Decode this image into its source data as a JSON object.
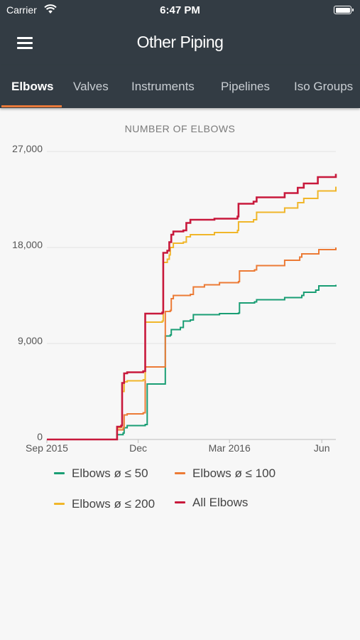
{
  "status_bar": {
    "carrier": "Carrier",
    "time": "6:47 PM",
    "battery_level": 1.0
  },
  "app_bar": {
    "title": "Other Piping",
    "menu_icon": "hamburger-menu-icon"
  },
  "tabs": [
    {
      "label": "Elbows",
      "active": true
    },
    {
      "label": "Valves",
      "active": false
    },
    {
      "label": "Instruments",
      "active": false
    },
    {
      "label": "Pipelines",
      "active": false
    },
    {
      "label": "Iso Groups",
      "active": false
    }
  ],
  "chart_title": "NUMBER OF ELBOWS",
  "chart_data": {
    "type": "line",
    "step": true,
    "title": "NUMBER OF ELBOWS",
    "xlabel": "",
    "ylabel": "",
    "x_range": [
      "2015-09-01",
      "2016-06-15"
    ],
    "ylim": [
      0,
      27000
    ],
    "x_ticks": [
      {
        "date": "2015-09-01",
        "label": "Sep 2015"
      },
      {
        "date": "2015-12-01",
        "label": "Dec"
      },
      {
        "date": "2016-03-01",
        "label": "Mar 2016"
      },
      {
        "date": "2016-06-01",
        "label": "Jun"
      }
    ],
    "y_ticks": [
      {
        "value": 0,
        "label": "0"
      },
      {
        "value": 9000,
        "label": "9,000"
      },
      {
        "value": 18000,
        "label": "18,000"
      },
      {
        "value": 27000,
        "label": "27,000"
      }
    ],
    "grid": true,
    "series": [
      {
        "name": "Elbows ø ≤ 50",
        "color": "#1a9e74",
        "points": [
          [
            "2015-09-01",
            0
          ],
          [
            "2015-11-06",
            0
          ],
          [
            "2015-11-10",
            450
          ],
          [
            "2015-11-16",
            600
          ],
          [
            "2015-11-17",
            1100
          ],
          [
            "2015-11-20",
            1300
          ],
          [
            "2015-12-08",
            1400
          ],
          [
            "2015-12-10",
            5200
          ],
          [
            "2015-12-27",
            5200
          ],
          [
            "2015-12-28",
            9700
          ],
          [
            "2016-01-02",
            9800
          ],
          [
            "2016-01-03",
            10300
          ],
          [
            "2016-01-12",
            10500
          ],
          [
            "2016-01-15",
            11100
          ],
          [
            "2016-01-22",
            11200
          ],
          [
            "2016-01-25",
            11700
          ],
          [
            "2016-02-20",
            11800
          ],
          [
            "2016-03-10",
            11850
          ],
          [
            "2016-03-11",
            12800
          ],
          [
            "2016-03-26",
            12900
          ],
          [
            "2016-03-28",
            13100
          ],
          [
            "2016-04-25",
            13300
          ],
          [
            "2016-05-12",
            13500
          ],
          [
            "2016-05-14",
            13800
          ],
          [
            "2016-05-26",
            14000
          ],
          [
            "2016-05-29",
            14400
          ],
          [
            "2016-06-15",
            14500
          ]
        ]
      },
      {
        "name": "Elbows ø ≤ 100",
        "color": "#ec7b36",
        "points": [
          [
            "2015-09-01",
            0
          ],
          [
            "2015-11-06",
            0
          ],
          [
            "2015-11-10",
            900
          ],
          [
            "2015-11-16",
            1100
          ],
          [
            "2015-11-17",
            2300
          ],
          [
            "2015-11-20",
            2400
          ],
          [
            "2015-12-06",
            2500
          ],
          [
            "2015-12-08",
            6800
          ],
          [
            "2015-12-27",
            6800
          ],
          [
            "2015-12-28",
            12000
          ],
          [
            "2016-01-02",
            12100
          ],
          [
            "2016-01-03",
            13200
          ],
          [
            "2016-01-05",
            13500
          ],
          [
            "2016-01-22",
            13600
          ],
          [
            "2016-01-25",
            14300
          ],
          [
            "2016-02-05",
            14500
          ],
          [
            "2016-02-20",
            14700
          ],
          [
            "2016-03-10",
            14800
          ],
          [
            "2016-03-11",
            15800
          ],
          [
            "2016-03-26",
            15900
          ],
          [
            "2016-03-28",
            16300
          ],
          [
            "2016-04-25",
            16800
          ],
          [
            "2016-05-10",
            17100
          ],
          [
            "2016-05-12",
            17400
          ],
          [
            "2016-05-29",
            17800
          ],
          [
            "2016-06-15",
            18000
          ]
        ]
      },
      {
        "name": "Elbows ø ≤ 200",
        "color": "#f0b62a",
        "points": [
          [
            "2015-09-01",
            0
          ],
          [
            "2015-11-06",
            0
          ],
          [
            "2015-11-10",
            1100
          ],
          [
            "2015-11-14",
            1300
          ],
          [
            "2015-11-15",
            4500
          ],
          [
            "2015-11-17",
            5400
          ],
          [
            "2015-11-20",
            5500
          ],
          [
            "2015-12-06",
            5600
          ],
          [
            "2015-12-08",
            11000
          ],
          [
            "2015-12-25",
            11100
          ],
          [
            "2015-12-26",
            16600
          ],
          [
            "2015-12-30",
            16900
          ],
          [
            "2016-01-01",
            17300
          ],
          [
            "2016-01-02",
            18000
          ],
          [
            "2016-01-05",
            18400
          ],
          [
            "2016-01-15",
            18500
          ],
          [
            "2016-01-18",
            19000
          ],
          [
            "2016-01-22",
            19200
          ],
          [
            "2016-02-15",
            19400
          ],
          [
            "2016-03-09",
            19600
          ],
          [
            "2016-03-10",
            20400
          ],
          [
            "2016-03-25",
            20600
          ],
          [
            "2016-03-28",
            21300
          ],
          [
            "2016-04-25",
            21700
          ],
          [
            "2016-05-08",
            22200
          ],
          [
            "2016-05-14",
            22600
          ],
          [
            "2016-05-28",
            23300
          ],
          [
            "2016-06-15",
            23700
          ]
        ]
      },
      {
        "name": "All Elbows",
        "color": "#c8193c",
        "points": [
          [
            "2015-09-01",
            0
          ],
          [
            "2015-11-06",
            0
          ],
          [
            "2015-11-10",
            1200
          ],
          [
            "2015-11-14",
            1300
          ],
          [
            "2015-11-15",
            5300
          ],
          [
            "2015-11-17",
            6200
          ],
          [
            "2015-11-20",
            6300
          ],
          [
            "2015-12-06",
            6400
          ],
          [
            "2015-12-08",
            11800
          ],
          [
            "2015-12-25",
            11900
          ],
          [
            "2015-12-26",
            17500
          ],
          [
            "2015-12-30",
            17700
          ],
          [
            "2016-01-01",
            18500
          ],
          [
            "2016-01-03",
            19200
          ],
          [
            "2016-01-05",
            19500
          ],
          [
            "2016-01-15",
            19600
          ],
          [
            "2016-01-18",
            20300
          ],
          [
            "2016-01-22",
            20600
          ],
          [
            "2016-02-15",
            20700
          ],
          [
            "2016-03-09",
            20900
          ],
          [
            "2016-03-10",
            22100
          ],
          [
            "2016-03-25",
            22300
          ],
          [
            "2016-03-28",
            22700
          ],
          [
            "2016-04-25",
            23100
          ],
          [
            "2016-05-08",
            23600
          ],
          [
            "2016-05-14",
            24000
          ],
          [
            "2016-05-28",
            24600
          ],
          [
            "2016-06-15",
            24900
          ]
        ]
      }
    ],
    "legend_placement": "bottom"
  }
}
